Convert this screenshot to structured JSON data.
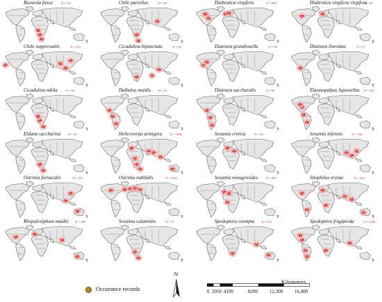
{
  "panels": [
    {
      "name": "Busseola fusca",
      "count": "N = 105",
      "hot": [
        [
          42,
          40
        ],
        [
          44,
          46
        ],
        [
          40,
          34
        ]
      ]
    },
    {
      "name": "Chilo partellus",
      "count": "N = 89",
      "hot": [
        [
          44,
          40
        ],
        [
          68,
          22
        ],
        [
          46,
          48
        ]
      ]
    },
    {
      "name": "Diabrotica virgifera",
      "count": "N = 668",
      "hot": [
        [
          14,
          14
        ],
        [
          16,
          18
        ],
        [
          12,
          12
        ],
        [
          36,
          12
        ],
        [
          40,
          11
        ]
      ]
    },
    {
      "name": "Diabrotica virgifera virgifera",
      "count": "N = 82",
      "hot": [
        [
          14,
          15
        ],
        [
          38,
          12
        ]
      ]
    },
    {
      "name": "Chilo suppressalis",
      "count": "N = 215",
      "hot": [
        [
          78,
          16
        ],
        [
          72,
          26
        ],
        [
          66,
          20
        ],
        [
          2,
          22
        ]
      ]
    },
    {
      "name": "Cicadulina bipunctata",
      "count": "N = 46",
      "hot": [
        [
          44,
          38
        ],
        [
          70,
          28
        ],
        [
          62,
          36
        ]
      ]
    },
    {
      "name": "Diatraea grandiosella",
      "count": "N = 39",
      "hot": [
        [
          10,
          22
        ],
        [
          14,
          18
        ]
      ]
    },
    {
      "name": "Diatraea lineolata",
      "count": "N = 27",
      "hot": [
        [
          12,
          26
        ]
      ]
    },
    {
      "name": "Cicadulina mbila",
      "count": "N = 55",
      "hot": [
        [
          42,
          38
        ],
        [
          46,
          46
        ],
        [
          40,
          32
        ]
      ]
    },
    {
      "name": "Dalbulus maidis",
      "count": "N = 33",
      "hot": [
        [
          12,
          24
        ],
        [
          20,
          42
        ],
        [
          16,
          32
        ]
      ]
    },
    {
      "name": "Diatraea saccharalis",
      "count": "N = 60",
      "hot": [
        [
          18,
          34
        ],
        [
          20,
          44
        ],
        [
          14,
          24
        ]
      ]
    },
    {
      "name": "Elasmopalpus lignosellus",
      "count": "N = 361",
      "hot": [
        [
          14,
          20
        ],
        [
          20,
          40
        ],
        [
          16,
          30
        ],
        [
          12,
          16
        ]
      ]
    },
    {
      "name": "Eldana saccharina",
      "count": "N = 30",
      "hot": [
        [
          42,
          38
        ],
        [
          46,
          46
        ]
      ]
    },
    {
      "name": "Helicoverpa armigera",
      "count": "N = 7006",
      "hot": [
        [
          42,
          30
        ],
        [
          48,
          44
        ],
        [
          38,
          16
        ],
        [
          64,
          22
        ],
        [
          86,
          44
        ],
        [
          72,
          28
        ],
        [
          44,
          38
        ],
        [
          58,
          20
        ]
      ]
    },
    {
      "name": "Sesamia cretica",
      "count": "N = 78",
      "hot": [
        [
          38,
          16
        ],
        [
          46,
          20
        ]
      ]
    },
    {
      "name": "Sesamia inferens",
      "count": "N = 168",
      "hot": [
        [
          72,
          26
        ],
        [
          66,
          22
        ],
        [
          78,
          20
        ]
      ]
    },
    {
      "name": "Ostrinia furnacalis",
      "count": "N = 257",
      "hot": [
        [
          78,
          18
        ],
        [
          72,
          28
        ],
        [
          86,
          42
        ]
      ]
    },
    {
      "name": "Ostrinia nubilalis",
      "count": "N = 3301",
      "hot": [
        [
          36,
          12
        ],
        [
          42,
          11
        ],
        [
          30,
          13
        ],
        [
          14,
          14
        ],
        [
          48,
          13
        ]
      ]
    },
    {
      "name": "Sesamia nonagrioides",
      "count": "N = 493",
      "hot": [
        [
          34,
          16
        ],
        [
          38,
          30
        ],
        [
          40,
          18
        ]
      ]
    },
    {
      "name": "Sitophilus oryzae",
      "count": "N = 622",
      "hot": [
        [
          14,
          18
        ],
        [
          64,
          22
        ],
        [
          72,
          26
        ],
        [
          42,
          34
        ],
        [
          20,
          40
        ],
        [
          86,
          44
        ],
        [
          38,
          14
        ]
      ]
    },
    {
      "name": "Rhopalosiphum maidis",
      "count": "N = 198",
      "hot": [
        [
          14,
          18
        ],
        [
          36,
          14
        ],
        [
          68,
          22
        ],
        [
          86,
          44
        ]
      ]
    },
    {
      "name": "Sesamia calamistis",
      "count": "N = 37",
      "hot": [
        [
          42,
          38
        ],
        [
          46,
          46
        ]
      ]
    },
    {
      "name": "Spodoptera exempta",
      "count": "N = 163",
      "hot": [
        [
          44,
          40
        ],
        [
          86,
          42
        ],
        [
          72,
          28
        ]
      ]
    },
    {
      "name": "Spodoptera frugiperda",
      "count": "N = 2188",
      "hot": [
        [
          14,
          22
        ],
        [
          18,
          36
        ],
        [
          20,
          44
        ],
        [
          42,
          36
        ],
        [
          70,
          26
        ],
        [
          12,
          16
        ]
      ]
    }
  ],
  "legend": {
    "label": "Occurance records",
    "dot_color": "#b8862f"
  },
  "north_label": "N",
  "scale": {
    "unit": "Kilometers",
    "ticks": [
      "0",
      "2050",
      "4100",
      "8200",
      "12,300",
      "16,400"
    ]
  },
  "colors": {
    "land": "#e6e6e6",
    "border": "#555555",
    "hotspot": "#cc1f1f",
    "halo": "#f3b6b6"
  }
}
